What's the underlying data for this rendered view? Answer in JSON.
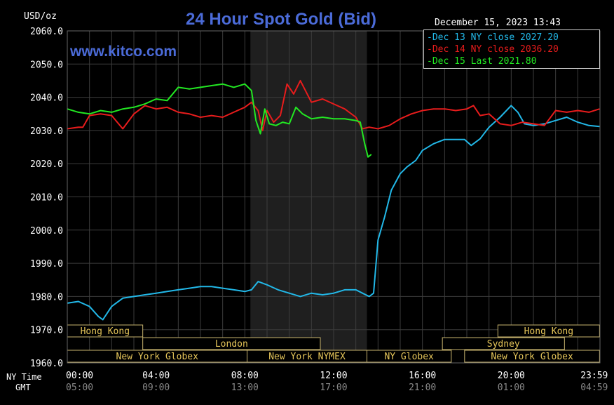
{
  "chart_data": {
    "type": "line",
    "title": "24 Hour Spot Gold (Bid)",
    "y_units": "USD/oz",
    "timestamp": "December 15, 2023 13:43",
    "watermark": "www.kitco.com",
    "ylim": [
      1960,
      2060
    ],
    "y_ticks": [
      "2060.0",
      "2050.0",
      "2040.0",
      "2030.0",
      "2020.0",
      "2010.0",
      "2000.0",
      "1990.0",
      "1980.0",
      "1970.0",
      "1960.0"
    ],
    "x_row_labels": [
      "NY Time",
      "GMT"
    ],
    "x_ticks_ny": [
      "00:00",
      "04:00",
      "08:00",
      "12:00",
      "16:00",
      "20:00",
      "23:59"
    ],
    "x_ticks_gmt": [
      "05:00",
      "09:00",
      "13:00",
      "17:00",
      "21:00",
      "01:00",
      "04:59"
    ],
    "shaded_region_hours": [
      8.25,
      13.5
    ],
    "series": [
      {
        "name": "Dec 13 NY close 2027.20",
        "color": "#22b8e8",
        "x_hours": [
          0,
          0.5,
          1,
          1.4,
          1.6,
          2,
          2.5,
          3,
          3.5,
          4,
          4.5,
          5,
          5.5,
          6,
          6.5,
          7,
          7.5,
          8,
          8.3,
          8.6,
          9,
          9.5,
          10,
          10.5,
          11,
          11.5,
          12,
          12.5,
          13,
          13.3,
          13.6,
          13.8,
          14.0,
          14.3,
          14.6,
          15,
          15.3,
          15.7,
          16,
          16.5,
          17,
          17.5,
          17.9,
          18.2,
          18.6,
          19,
          19.5,
          20,
          20.3,
          20.6,
          21,
          21.5,
          22,
          22.5,
          23,
          23.5,
          23.98
        ],
        "values": [
          1978,
          1978.5,
          1977,
          1974,
          1973,
          1977,
          1979.5,
          1980,
          1980.5,
          1981,
          1981.5,
          1982,
          1982.5,
          1983,
          1983,
          1982.5,
          1982,
          1981.5,
          1982,
          1984.5,
          1983.5,
          1982,
          1981,
          1980,
          1981,
          1980.5,
          1981,
          1982,
          1982,
          1981,
          1980,
          1981,
          1997,
          2004,
          2012,
          2017,
          2019,
          2021,
          2024,
          2026,
          2027.3,
          2027.3,
          2027.3,
          2025.5,
          2027.5,
          2031,
          2034,
          2037.5,
          2035.5,
          2032,
          2031.5,
          2032,
          2033,
          2034,
          2032.5,
          2031.5,
          2031.2
        ]
      },
      {
        "name": "Dec 14 NY close 2036.20",
        "color": "#e81c1c",
        "x_hours": [
          0,
          0.5,
          0.7,
          1,
          1.5,
          2,
          2.5,
          3,
          3.5,
          4,
          4.5,
          5,
          5.5,
          6,
          6.5,
          7,
          7.5,
          8,
          8.3,
          8.6,
          8.8,
          9,
          9.3,
          9.6,
          9.9,
          10.2,
          10.5,
          11,
          11.5,
          12,
          12.5,
          13,
          13.3,
          13.6,
          14,
          14.5,
          15,
          15.5,
          16,
          16.5,
          17,
          17.5,
          18,
          18.3,
          18.6,
          19,
          19.5,
          20,
          20.5,
          21,
          21.5,
          22,
          22.5,
          23,
          23.5,
          23.98
        ],
        "values": [
          2030.5,
          2031,
          2031,
          2034.5,
          2035,
          2034.5,
          2030.5,
          2035,
          2037.5,
          2036.5,
          2037,
          2035.5,
          2035,
          2034,
          2034.5,
          2034,
          2035.5,
          2037,
          2038.5,
          2036,
          2030,
          2036,
          2032.5,
          2034.5,
          2044,
          2041,
          2045,
          2038.5,
          2039.5,
          2038,
          2036.5,
          2034,
          2030.5,
          2031,
          2030.5,
          2031.5,
          2033.5,
          2035,
          2036,
          2036.5,
          2036.5,
          2036,
          2036.5,
          2037.5,
          2034.5,
          2035,
          2032,
          2031.5,
          2032.5,
          2032,
          2031.5,
          2036,
          2035.5,
          2036,
          2035.5,
          2036.5
        ]
      },
      {
        "name": "Dec 15 Last 2021.80",
        "color": "#22e822",
        "x_hours": [
          0,
          0.5,
          1,
          1.5,
          2,
          2.5,
          3,
          3.5,
          4,
          4.5,
          5,
          5.5,
          6,
          6.5,
          7,
          7.5,
          8,
          8.3,
          8.5,
          8.7,
          8.9,
          9.1,
          9.4,
          9.7,
          10,
          10.3,
          10.6,
          11,
          11.5,
          12,
          12.5,
          13,
          13.2,
          13.4,
          13.55,
          13.7
        ],
        "values": [
          2036.5,
          2035.5,
          2035,
          2036,
          2035.5,
          2036.5,
          2037,
          2038,
          2039.5,
          2039,
          2043,
          2042.5,
          2043,
          2043.5,
          2044,
          2043,
          2044,
          2042,
          2033,
          2029,
          2036.5,
          2032,
          2031.5,
          2032.5,
          2032,
          2037,
          2035,
          2033.5,
          2034,
          2033.5,
          2033.5,
          2033,
          2032.5,
          2026,
          2022,
          2022.8
        ]
      }
    ],
    "sessions": [
      {
        "label": "Hong Kong",
        "row": 1,
        "start_hours": 0,
        "end_hours": 3.4
      },
      {
        "label": "Hong Kong",
        "row": 1,
        "start_hours": 19.4,
        "end_hours": 23.98
      },
      {
        "label": "London",
        "row": 2,
        "start_hours": 3.4,
        "end_hours": 11.4
      },
      {
        "label": "Sydney",
        "row": 2,
        "start_hours": 16.9,
        "end_hours": 22.4
      },
      {
        "label": "New York Globex",
        "row": 3,
        "start_hours": 0,
        "end_hours": 8.1
      },
      {
        "label": "New York NYMEX",
        "row": 3,
        "start_hours": 8.1,
        "end_hours": 13.5
      },
      {
        "label": "NY Globex",
        "row": 3,
        "start_hours": 13.5,
        "end_hours": 17.3
      },
      {
        "label": "New York Globex",
        "row": 3,
        "start_hours": 17.9,
        "end_hours": 23.98
      }
    ]
  }
}
